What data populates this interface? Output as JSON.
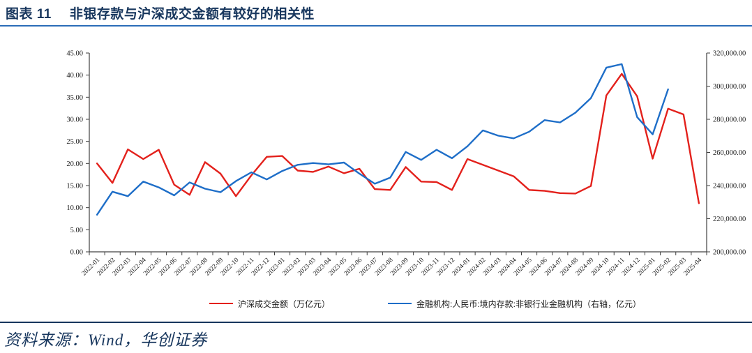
{
  "title": {
    "prefix": "图表 11",
    "text": "非银存款与沪深成交金额有较好的相关性"
  },
  "source": {
    "label": "资料来源：Wind，华创证券"
  },
  "colors": {
    "red_series": "#e3211c",
    "blue_series": "#1e6ec8",
    "title_navy": "#17365d",
    "underline_blue": "#2a6db8",
    "axis_line": "#404040"
  },
  "chart_data": {
    "type": "line",
    "title": "",
    "grid": false,
    "legend_position": "bottom",
    "categories": [
      "2022-01",
      "2022-02",
      "2022-03",
      "2022-04",
      "2022-05",
      "2022-06",
      "2022-07",
      "2022-08",
      "2022-09",
      "2022-10",
      "2022-11",
      "2022-12",
      "2023-01",
      "2023-02",
      "2023-03",
      "2023-04",
      "2023-05",
      "2023-06",
      "2023-07",
      "2023-08",
      "2023-09",
      "2023-10",
      "2023-11",
      "2023-12",
      "2024-01",
      "2024-02",
      "2024-03",
      "2024-04",
      "2024-05",
      "2024-06",
      "2024-07",
      "2024-08",
      "2024-09",
      "2024-10",
      "2024-11",
      "2024-12",
      "2025-01",
      "2025-02",
      "2025-03",
      "2025-04"
    ],
    "left_axis": {
      "min": 0,
      "max": 45,
      "step": 5,
      "tick_labels": [
        "0.00",
        "5.00",
        "10.00",
        "15.00",
        "20.00",
        "25.00",
        "30.00",
        "35.00",
        "40.00",
        "45.00"
      ]
    },
    "right_axis": {
      "min": 200000,
      "max": 320000,
      "step": 20000,
      "tick_labels": [
        "200,000.00",
        "220,000.00",
        "240,000.00",
        "260,000.00",
        "280,000.00",
        "300,000.00",
        "320,000.00"
      ]
    },
    "series": [
      {
        "name": "沪深成交金额（万亿元）",
        "axis": "left",
        "color": "#e3211c",
        "values": [
          20.0,
          15.6,
          23.2,
          21.0,
          23.1,
          15.2,
          12.9,
          20.3,
          17.7,
          12.6,
          17.3,
          21.5,
          21.7,
          18.4,
          18.1,
          19.3,
          17.8,
          18.8,
          14.2,
          14.0,
          19.2,
          15.9,
          15.8,
          14.0,
          21.0,
          19.7,
          18.4,
          17.1,
          14.0,
          13.8,
          13.3,
          13.2,
          14.9,
          35.4,
          40.3,
          35.2,
          21.1,
          32.4,
          31.1,
          11.0
        ]
      },
      {
        "name": "金融机构:人民币:境内存款:非银行业金融机构（右轴，亿元）",
        "axis": "right",
        "color": "#1e6ec8",
        "values": [
          222400,
          236300,
          233600,
          242400,
          238900,
          234100,
          241900,
          238100,
          236000,
          242700,
          248000,
          243700,
          248800,
          252500,
          253600,
          252800,
          253900,
          247200,
          241100,
          244800,
          260300,
          255500,
          261600,
          256500,
          263700,
          273300,
          270100,
          268500,
          272500,
          279500,
          278100,
          284000,
          292800,
          311200,
          313300,
          281300,
          270900,
          298100
        ]
      }
    ]
  }
}
